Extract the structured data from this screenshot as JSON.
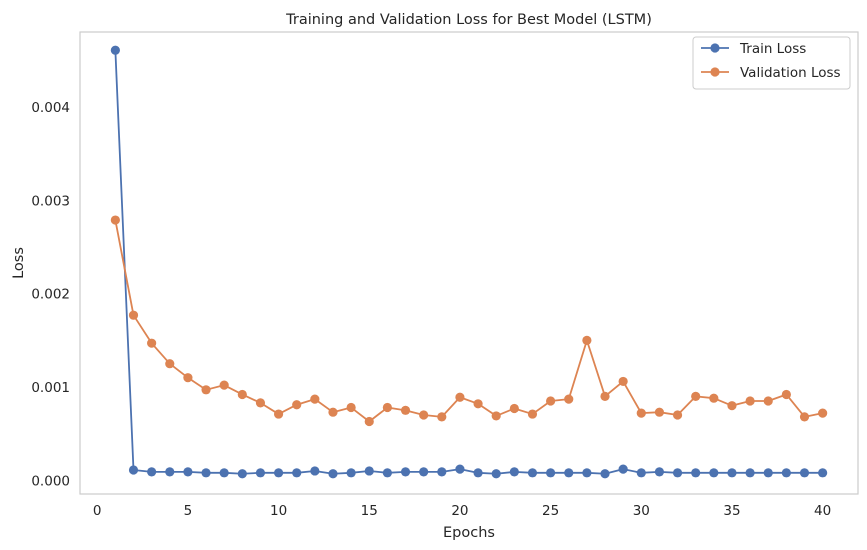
{
  "chart_data": {
    "type": "line",
    "title": "Training and Validation Loss for Best Model (LSTM)",
    "xlabel": "Epochs",
    "ylabel": "Loss",
    "xlim": [
      -0.95,
      41.95
    ],
    "ylim": [
      -0.000147,
      0.004806
    ],
    "xticks": [
      0,
      5,
      10,
      15,
      20,
      25,
      30,
      35,
      40
    ],
    "yticks": [
      0.0,
      0.001,
      0.002,
      0.003,
      0.004
    ],
    "ytick_labels": [
      "0.000",
      "0.001",
      "0.002",
      "0.003",
      "0.004"
    ],
    "grid": false,
    "legend_position": "top-right",
    "x": [
      1,
      2,
      3,
      4,
      5,
      6,
      7,
      8,
      9,
      10,
      11,
      12,
      13,
      14,
      15,
      16,
      17,
      18,
      19,
      20,
      21,
      22,
      23,
      24,
      25,
      26,
      27,
      28,
      29,
      30,
      31,
      32,
      33,
      34,
      35,
      36,
      37,
      38,
      39,
      40
    ],
    "series": [
      {
        "name": "Train Loss",
        "color": "#4c72b0",
        "values": [
          0.00461,
          0.00011,
          9e-05,
          9e-05,
          9e-05,
          8e-05,
          8e-05,
          7e-05,
          8e-05,
          8e-05,
          8e-05,
          0.0001,
          7e-05,
          8e-05,
          0.0001,
          8e-05,
          9e-05,
          9e-05,
          9e-05,
          0.00012,
          8e-05,
          7e-05,
          9e-05,
          8e-05,
          8e-05,
          8e-05,
          8e-05,
          7e-05,
          0.00012,
          8e-05,
          9e-05,
          8e-05,
          8e-05,
          8e-05,
          8e-05,
          8e-05,
          8e-05,
          8e-05,
          8e-05,
          8e-05
        ]
      },
      {
        "name": "Validation Loss",
        "color": "#dd8452",
        "values": [
          0.00279,
          0.00177,
          0.00147,
          0.00125,
          0.0011,
          0.00097,
          0.00102,
          0.00092,
          0.00083,
          0.00071,
          0.00081,
          0.00087,
          0.00073,
          0.00078,
          0.00063,
          0.00078,
          0.00075,
          0.0007,
          0.00068,
          0.00089,
          0.00082,
          0.00069,
          0.00077,
          0.00071,
          0.00085,
          0.00087,
          0.0015,
          0.0009,
          0.00106,
          0.00072,
          0.00073,
          0.0007,
          0.0009,
          0.00088,
          0.0008,
          0.00085,
          0.00085,
          0.00092,
          0.00068,
          0.00072
        ]
      }
    ]
  }
}
